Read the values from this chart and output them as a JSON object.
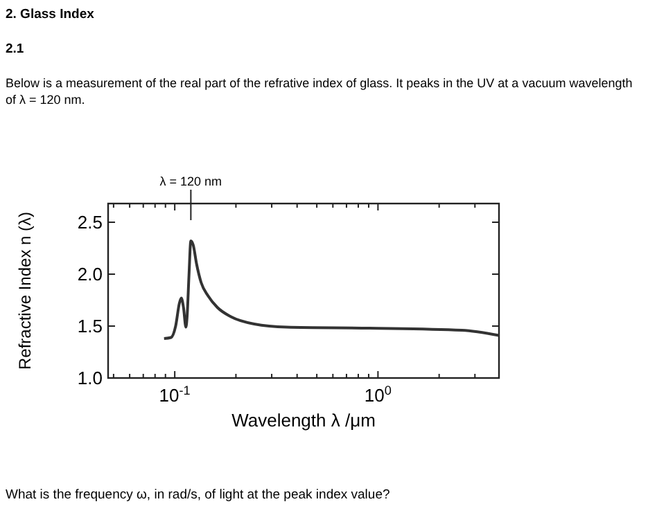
{
  "chart_data": {
    "type": "line",
    "title": "2. Glass Index",
    "subtitle": "2.1",
    "annotations": [
      "Below is a measurement of the real part of the refrative index of glass.  It peaks in the UV at a vacuum wavelength of λ = 120 nm.",
      "What is the frequency ω, in rad/s, of light at the peak index value?"
    ],
    "xlabel": "Wavelength λ /μm",
    "ylabel": "Refractive Index n (λ)",
    "log": "x",
    "x": [
      0.0886,
      0.0959,
      0.101,
      0.1054,
      0.1077,
      0.1104,
      0.1135,
      0.115,
      0.1175,
      0.12,
      0.1233,
      0.128,
      0.1348,
      0.146,
      0.162,
      0.189,
      0.246,
      0.355,
      0.91,
      2.59,
      3.94
    ],
    "series": [
      {
        "color": "#333333",
        "values": [
          1.38,
          1.39,
          1.5,
          1.72,
          1.77,
          1.68,
          1.49,
          1.59,
          1.99,
          2.32,
          2.28,
          2.1,
          1.92,
          1.79,
          1.68,
          1.59,
          1.52,
          1.49,
          1.48,
          1.46,
          1.41
        ]
      }
    ],
    "xlim": [
      0.047,
      3.94
    ],
    "ylim": [
      1.0,
      2.68
    ],
    "xticks": [
      {
        "value": 0.05,
        "label": null
      },
      {
        "value": 0.06,
        "label": null
      },
      {
        "value": 0.07,
        "label": null
      },
      {
        "value": 0.08,
        "label": null
      },
      {
        "value": 0.09,
        "label": null
      },
      {
        "value": 0.1,
        "label": "10$^{-1}$"
      },
      {
        "value": 0.2,
        "label": null
      },
      {
        "value": 0.3,
        "label": null
      },
      {
        "value": 0.4,
        "label": null
      },
      {
        "value": 0.5,
        "label": null
      },
      {
        "value": 0.6,
        "label": null
      },
      {
        "value": 0.7,
        "label": null
      },
      {
        "value": 0.8,
        "label": null
      },
      {
        "value": 0.9,
        "label": null
      },
      {
        "value": 1,
        "label": "10$^{0}$"
      },
      {
        "value": 2,
        "label": null
      },
      {
        "value": 3,
        "label": null
      }
    ],
    "yticks": [
      {
        "value": 1,
        "label": "1.0"
      },
      {
        "value": 1.5,
        "label": "1.5"
      },
      {
        "value": 2,
        "label": "2.0"
      },
      {
        "value": 2.5,
        "label": "2.5"
      }
    ],
    "ref_lines": [
      {
        "axis": "x",
        "value": 0.12,
        "label": "λ = 120 nm"
      }
    ],
    "grid": false,
    "marker": "none",
    "line_style": "solid"
  }
}
